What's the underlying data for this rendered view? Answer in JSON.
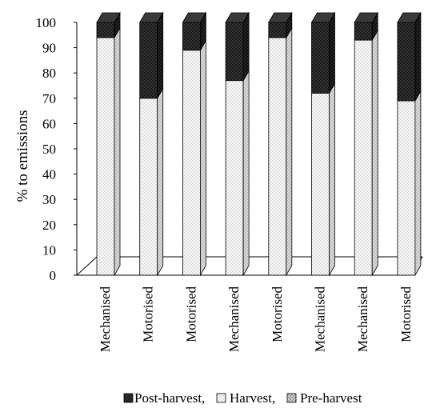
{
  "chart_data": {
    "type": "bar",
    "stacked": true,
    "three_d": true,
    "ylabel": "% to emissions",
    "xlabel": "",
    "ylim": [
      0,
      100
    ],
    "yticks": [
      0,
      10,
      20,
      30,
      40,
      50,
      60,
      70,
      80,
      90,
      100
    ],
    "categories": [
      "Mechanised",
      "Motorised",
      "Motorised",
      "Mechanised",
      "Motorised",
      "Mechanised",
      "Mechanised",
      "Motorised"
    ],
    "series": [
      {
        "name": "Pre-harvest",
        "values": [
          0,
          0,
          0,
          0,
          0,
          0,
          0,
          0
        ]
      },
      {
        "name": "Harvest",
        "values": [
          94,
          70,
          89,
          77,
          94,
          72,
          93,
          69
        ]
      },
      {
        "name": "Post-harvest",
        "values": [
          6,
          30,
          11,
          23,
          6,
          28,
          7,
          31
        ]
      }
    ],
    "legend": {
      "placement": "bottom",
      "entries": [
        "Post-harvest,",
        "Harvest,",
        "Pre-harvest"
      ]
    },
    "colors": {
      "post_harvest": "#1c1c1c",
      "harvest": "#f4f4f4",
      "pre_harvest": "#bdbdbd",
      "axis": "#000000"
    },
    "grid": false
  }
}
